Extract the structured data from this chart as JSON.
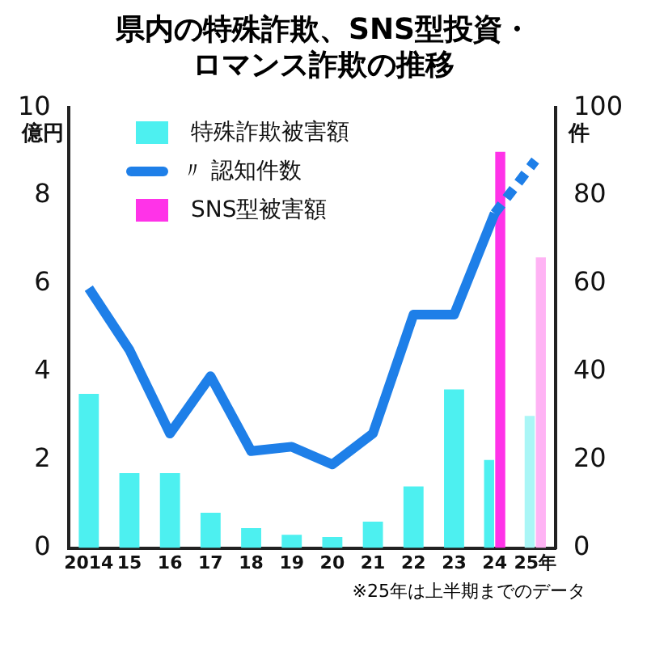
{
  "chart_data": {
    "type": "bar",
    "title": "県内の特殊詐欺、SNS型投資・ロマンス詐欺の推移",
    "categories": [
      "2014",
      "15",
      "16",
      "17",
      "18",
      "19",
      "20",
      "21",
      "22",
      "23",
      "24",
      "25年"
    ],
    "ylabel": "億円",
    "y2label": "件",
    "ylim": [
      0,
      10
    ],
    "yticks": [
      0,
      2,
      4,
      6,
      8,
      10
    ],
    "y2lim": [
      0,
      100
    ],
    "y2ticks": [
      0,
      20,
      40,
      60,
      80,
      100
    ],
    "legend": "top left",
    "series": [
      {
        "name": "特殊詐欺被害額",
        "color": "#4df0f0",
        "colors": [
          "#4df0f0",
          "#4df0f0",
          "#4df0f0",
          "#4df0f0",
          "#4df0f0",
          "#4df0f0",
          "#4df0f0",
          "#4df0f0",
          "#4df0f0",
          "#4df0f0",
          "#4df0f0",
          "#aaf6f6"
        ],
        "values": [
          3.5,
          1.7,
          1.7,
          0.8,
          0.45,
          0.3,
          0.25,
          0.6,
          1.4,
          3.6,
          2.0,
          3.0
        ]
      },
      {
        "name": "〃 認知件数",
        "type": "line",
        "axis": "y2",
        "color": "#1e7fe8",
        "line_style": "solid",
        "values": [
          59,
          45,
          26,
          39,
          22,
          23,
          19,
          26,
          53,
          53,
          76,
          null
        ]
      },
      {
        "type": "line",
        "axis": "y2",
        "color": "#1e7fe8",
        "line_style": "dashed",
        "values": [
          null,
          null,
          null,
          null,
          null,
          null,
          null,
          null,
          null,
          null,
          76,
          88
        ]
      },
      {
        "name": "SNS型被害額",
        "color": "#ff33e8",
        "colors": [
          null,
          null,
          null,
          null,
          null,
          null,
          null,
          null,
          null,
          null,
          "#ff33e8",
          "#ffb3f4"
        ],
        "values": [
          null,
          null,
          null,
          null,
          null,
          null,
          null,
          null,
          null,
          null,
          9.0,
          6.6
        ]
      }
    ],
    "annotations": [
      "※25年は上半期までのデータ"
    ]
  }
}
